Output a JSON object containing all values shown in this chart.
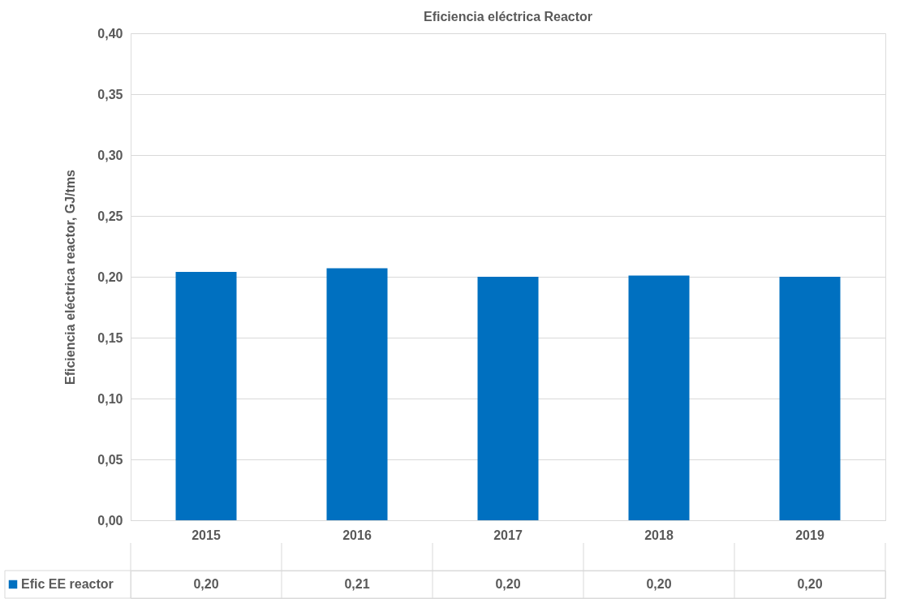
{
  "chart_data": {
    "type": "bar",
    "title": "Eficiencia eléctrica Reactor",
    "ylabel": "Eficiencia eléctrica reactor, GJ/tms",
    "categories": [
      "2015",
      "2016",
      "2017",
      "2018",
      "2019"
    ],
    "series": [
      {
        "name": "Efic EE reactor",
        "color": "#0070c0",
        "values": [
          0.204,
          0.207,
          0.2,
          0.201,
          0.2
        ],
        "value_labels": [
          "0,20",
          "0,21",
          "0,20",
          "0,20",
          "0,20"
        ]
      }
    ],
    "ylim": [
      0,
      0.4
    ],
    "yticks": [
      {
        "value": 0,
        "label": "0,00"
      },
      {
        "value": 0.05,
        "label": "0,05"
      },
      {
        "value": 0.1,
        "label": "0,10"
      },
      {
        "value": 0.15,
        "label": "0,15"
      },
      {
        "value": 0.2,
        "label": "0,20"
      },
      {
        "value": 0.25,
        "label": "0,25"
      },
      {
        "value": 0.3,
        "label": "0,30"
      },
      {
        "value": 0.35,
        "label": "0,35"
      },
      {
        "value": 0.4,
        "label": "0,40"
      }
    ],
    "grid": "y",
    "legend": "bottom"
  }
}
